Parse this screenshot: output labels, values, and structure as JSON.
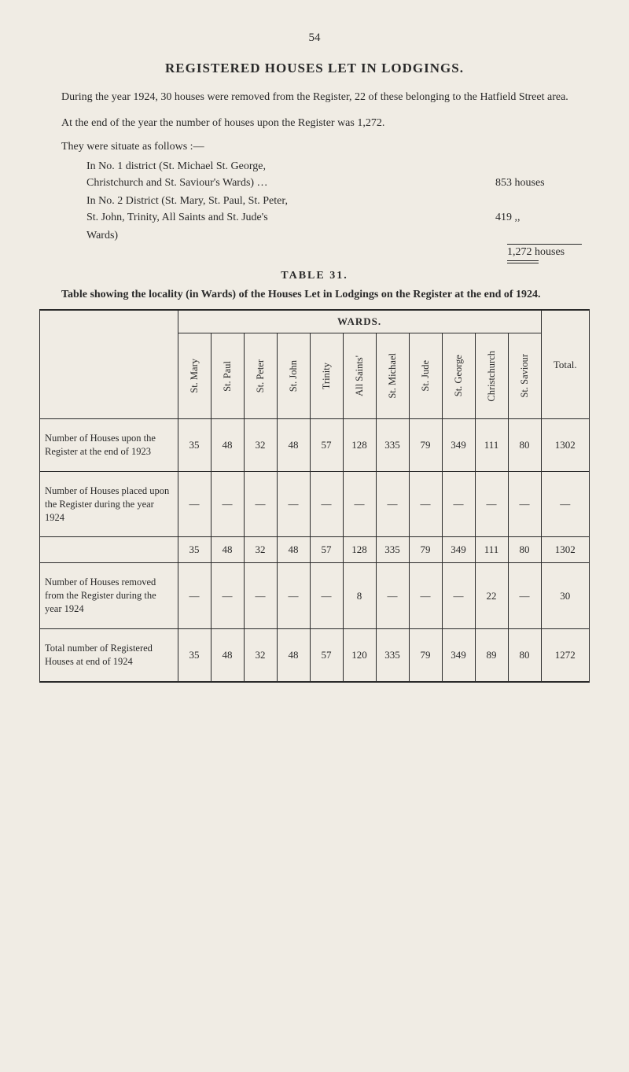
{
  "page_number": "54",
  "title": "REGISTERED HOUSES LET IN LODGINGS.",
  "para1": "During the year 1924, 30 houses were removed from the Register, 22 of these belonging to the Hatfield Street area.",
  "para2": "At the end of the year the number of houses upon the Register was 1,272.",
  "follows": "They were situate as follows :—",
  "district1_line1": "In No. 1 district (St. Michael St. George,",
  "district1_line2": "Christchurch and St. Saviour's Wards) …",
  "district1_value": "853 houses",
  "district2_line1": "In No. 2 District (St. Mary, St. Paul, St. Peter,",
  "district2_line2": "St. John, Trinity, All Saints and St. Jude's",
  "district2_line3": "Wards)",
  "district2_value": "419   ,,",
  "total_houses": "1,272 houses",
  "table_label": "TABLE 31.",
  "table_caption": "Table showing the locality (in Wards) of the Houses Let in Lodgings on the Register at the end of 1924.",
  "wards_header": "WARDS.",
  "columns": {
    "c1": "St. Mary",
    "c2": "St. Paul",
    "c3": "St. Peter",
    "c4": "St. John",
    "c5": "Trinity",
    "c6": "All Saints'",
    "c7": "St. Michael",
    "c8": "St. Jude",
    "c9": "St. George",
    "c10": "Christchurch",
    "c11": "St. Saviour",
    "total": "Total."
  },
  "rows": [
    {
      "label": "Number of Houses upon the Register at the end of 1923",
      "cells": [
        "35",
        "48",
        "32",
        "48",
        "57",
        "128",
        "335",
        "79",
        "349",
        "111",
        "80",
        "1302"
      ]
    },
    {
      "label": "Number of Houses placed upon the Register during the year 1924",
      "cells": [
        "—",
        "—",
        "—",
        "—",
        "—",
        "—",
        "—",
        "—",
        "—",
        "—",
        "—",
        "—"
      ]
    },
    {
      "label": "",
      "cells": [
        "35",
        "48",
        "32",
        "48",
        "57",
        "128",
        "335",
        "79",
        "349",
        "111",
        "80",
        "1302"
      ]
    },
    {
      "label": "Number of Houses removed from the Register during the year 1924",
      "cells": [
        "—",
        "—",
        "—",
        "—",
        "—",
        "8",
        "—",
        "—",
        "—",
        "22",
        "—",
        "30"
      ]
    },
    {
      "label": "Total number of Registered Houses at end of 1924",
      "cells": [
        "35",
        "48",
        "32",
        "48",
        "57",
        "120",
        "335",
        "79",
        "349",
        "89",
        "80",
        "1272"
      ]
    }
  ]
}
